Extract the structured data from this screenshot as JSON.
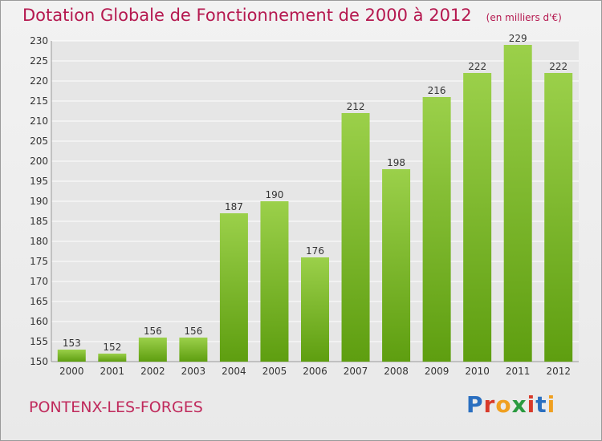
{
  "header": {
    "title": "Dotation Globale de Fonctionnement de 2000 à 2012",
    "unit": "(en milliers d'€)"
  },
  "footer": {
    "commune": "PONTENX-LES-FORGES",
    "logo": "Proxiti",
    "logo_colors": [
      "#2a6fc0",
      "#d83a2a",
      "#f0a020",
      "#2a9a40",
      "#d83a2a",
      "#2a6fc0",
      "#f0a020"
    ]
  },
  "colors": {
    "bar_top": "#9bd04a",
    "bar_bottom": "#5e9e10",
    "grid": "#ffffff",
    "text": "#333333"
  },
  "chart_data": {
    "type": "bar",
    "categories": [
      "2000",
      "2001",
      "2002",
      "2003",
      "2004",
      "2005",
      "2006",
      "2007",
      "2008",
      "2009",
      "2010",
      "2011",
      "2012"
    ],
    "values": [
      153,
      152,
      156,
      156,
      187,
      190,
      176,
      212,
      198,
      216,
      222,
      229,
      222
    ],
    "data_labels": [
      "153",
      "152",
      "156",
      "156",
      "187",
      "190",
      "176",
      "212",
      "198",
      "216",
      "222",
      "229",
      "222"
    ],
    "ylim": [
      150,
      230
    ],
    "yticks": [
      150,
      155,
      160,
      165,
      170,
      175,
      180,
      185,
      190,
      195,
      200,
      205,
      210,
      215,
      220,
      225,
      230
    ],
    "grid": true
  }
}
